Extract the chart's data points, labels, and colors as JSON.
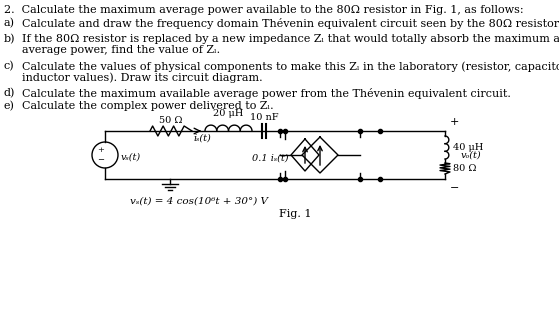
{
  "background_color": "#ffffff",
  "text_color": "#000000",
  "title_line": "2.  Calculate the maximum average power available to the 80Ω resistor in Fig. 1, as follows:",
  "item_a_label": "a)",
  "item_a_text": "Calculate and draw the frequency domain Thévenin equivalent circuit seen by the 80Ω resistor.",
  "item_b_label": "b)",
  "item_b_line1": "If the 80Ω resistor is replaced by a new impedance Zₗ that would totally absorb the maximum available",
  "item_b_line2": "average power, find the value of Zₗ.",
  "item_c_label": "c)",
  "item_c_line1": "Calculate the values of physical components to make this Zₗ in the laboratory (resistor, capacitor or",
  "item_c_line2": "inductor values). Draw its circuit diagram.",
  "item_d_label": "d)",
  "item_d_text": "Calculate the maximum available average power from the Thévenin equivalent circuit.",
  "item_e_label": "e)",
  "item_e_text": "Calculate the complex power delivered to Zₗ.",
  "fig_label": "Fig. 1",
  "vs_label": "vₛ(t)",
  "is_label": "iₛ(t)",
  "R1_label": "50 Ω",
  "L1_label": "20 μH",
  "C1_label": "10 nF",
  "dep_label": "0.1 iₛ(t)",
  "L2_label": "40 μH",
  "R2_label": "80 Ω",
  "vo_label": "vₒ(t)",
  "vs_eq": "vₛ(t) = 4 cos(10⁶t + 30°) V",
  "font_size": 8.0,
  "font_size_circuit": 7.0
}
